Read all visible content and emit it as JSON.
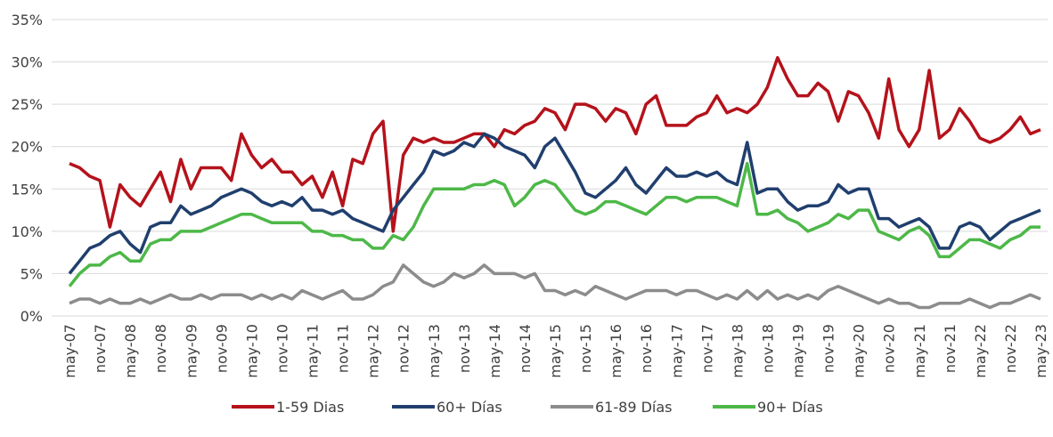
{
  "chart_data": {
    "type": "line",
    "categories": [
      "may-07",
      null,
      null,
      "nov-07",
      null,
      null,
      "may-08",
      null,
      null,
      "nov-08",
      null,
      null,
      "may-09",
      null,
      null,
      "nov-09",
      null,
      null,
      "may-10",
      null,
      null,
      "nov-10",
      null,
      null,
      "may-11",
      null,
      null,
      "nov-11",
      null,
      null,
      "may-12",
      null,
      null,
      "nov-12",
      null,
      null,
      "may-13",
      null,
      null,
      "nov-13",
      null,
      null,
      "may-14",
      null,
      null,
      "nov-14",
      null,
      null,
      "may-15",
      null,
      null,
      "nov-15",
      null,
      null,
      "may-16",
      null,
      null,
      "nov-16",
      null,
      null,
      "may-17",
      null,
      null,
      "nov-17",
      null,
      null,
      "may-18",
      null,
      null,
      "nov-18",
      null,
      null,
      "may-19",
      null,
      null,
      "nov-19",
      null,
      null,
      "may-20",
      null,
      null,
      "nov-20",
      null,
      null,
      "may-21",
      null,
      null,
      "nov-21",
      null,
      null,
      "may-22",
      null,
      null,
      "nov-22",
      null,
      null,
      "may-23"
    ],
    "series": [
      {
        "name": "1-59 Dias",
        "color": "#b5121b",
        "values": [
          18,
          17.5,
          16.5,
          16,
          10.5,
          15.5,
          14,
          13,
          15,
          17,
          13.5,
          18.5,
          15,
          17.5,
          17.5,
          17.5,
          16,
          21.5,
          19,
          17.5,
          18.5,
          17,
          17,
          15.5,
          16.5,
          14,
          17,
          13,
          18.5,
          18,
          21.5,
          23,
          10,
          19,
          21,
          20.5,
          21,
          20.5,
          20.5,
          21,
          21.5,
          21.5,
          20,
          22,
          21.5,
          22.5,
          23,
          24.5,
          24,
          22,
          25,
          25,
          24.5,
          23,
          24.5,
          24,
          21.5,
          25,
          26,
          22.5,
          22.5,
          22.5,
          23.5,
          24,
          26,
          24,
          24.5,
          24,
          25,
          27,
          30.5,
          28,
          26,
          26,
          27.5,
          26.5,
          23,
          26.5,
          26,
          24,
          21,
          28,
          22,
          20,
          22,
          29,
          21,
          22,
          24.5,
          23,
          21,
          20.5,
          21,
          22,
          23.5,
          21.5,
          22
        ]
      },
      {
        "name": "60+ Días",
        "color": "#203f6e",
        "values": [
          5,
          6.5,
          8,
          8.5,
          9.5,
          10,
          8.5,
          7.5,
          10.5,
          11,
          11,
          13,
          12,
          12.5,
          13,
          14,
          14.5,
          15,
          14.5,
          13.5,
          13,
          13.5,
          13,
          14,
          12.5,
          12.5,
          12,
          12.5,
          11.5,
          11,
          10.5,
          10,
          12.5,
          14,
          15.5,
          17,
          19.5,
          19,
          19.5,
          20.5,
          20,
          21.5,
          21,
          20,
          19.5,
          19,
          17.5,
          20,
          21,
          19,
          17,
          14.5,
          14,
          15,
          16,
          17.5,
          15.5,
          14.5,
          16,
          17.5,
          16.5,
          16.5,
          17,
          16.5,
          17,
          16,
          15.5,
          20.5,
          14.5,
          15,
          15,
          13.5,
          12.5,
          13,
          13,
          13.5,
          15.5,
          14.5,
          15,
          15,
          11.5,
          11.5,
          10.5,
          11,
          11.5,
          10.5,
          8,
          8,
          10.5,
          11,
          10.5,
          9,
          10,
          11,
          11.5,
          12,
          12.5
        ]
      },
      {
        "name": "61-89 Días",
        "color": "#8c8c8c",
        "values": [
          1.5,
          2,
          2,
          1.5,
          2,
          1.5,
          1.5,
          2,
          1.5,
          2,
          2.5,
          2,
          2,
          2.5,
          2,
          2.5,
          2.5,
          2.5,
          2,
          2.5,
          2,
          2.5,
          2,
          3,
          2.5,
          2,
          2.5,
          3,
          2,
          2,
          2.5,
          3.5,
          4,
          6,
          5,
          4,
          3.5,
          4,
          5,
          4.5,
          5,
          6,
          5,
          5,
          5,
          4.5,
          5,
          3,
          3,
          2.5,
          3,
          2.5,
          3.5,
          3,
          2.5,
          2,
          2.5,
          3,
          3,
          3,
          2.5,
          3,
          3,
          2.5,
          2,
          2.5,
          2,
          3,
          2,
          3,
          2,
          2.5,
          2,
          2.5,
          2,
          3,
          3.5,
          3,
          2.5,
          2,
          1.5,
          2,
          1.5,
          1.5,
          1,
          1,
          1.5,
          1.5,
          1.5,
          2,
          1.5,
          1,
          1.5,
          1.5,
          2,
          2.5,
          2
        ]
      },
      {
        "name": "90+ Días",
        "color": "#4db848",
        "values": [
          3.5,
          5,
          6,
          6,
          7,
          7.5,
          6.5,
          6.5,
          8.5,
          9,
          9,
          10,
          10,
          10,
          10.5,
          11,
          11.5,
          12,
          12,
          11.5,
          11,
          11,
          11,
          11,
          10,
          10,
          9.5,
          9.5,
          9,
          9,
          8,
          8,
          9.5,
          9,
          10.5,
          13,
          15,
          15,
          15,
          15,
          15.5,
          15.5,
          16,
          15.5,
          13,
          14,
          15.5,
          16,
          15.5,
          14,
          12.5,
          12,
          12.5,
          13.5,
          13.5,
          13,
          12.5,
          12,
          13,
          14,
          14,
          13.5,
          14,
          14,
          14,
          13.5,
          13,
          18,
          12,
          12,
          12.5,
          11.5,
          11,
          10,
          10.5,
          11,
          12,
          11.5,
          12.5,
          12.5,
          10,
          9.5,
          9,
          10,
          10.5,
          9.5,
          7,
          7,
          8,
          9,
          9,
          8.5,
          8,
          9,
          9.5,
          10.5,
          10.5
        ]
      }
    ],
    "ylim": [
      0,
      35
    ],
    "yticks": [
      {
        "value": 0,
        "label": "0%"
      },
      {
        "value": 5,
        "label": "5%"
      },
      {
        "value": 10,
        "label": "10%"
      },
      {
        "value": 15,
        "label": "15%"
      },
      {
        "value": 20,
        "label": "20%"
      },
      {
        "value": 25,
        "label": "25%"
      },
      {
        "value": 30,
        "label": "30%"
      },
      {
        "value": 35,
        "label": "35%"
      }
    ],
    "grid": true
  }
}
